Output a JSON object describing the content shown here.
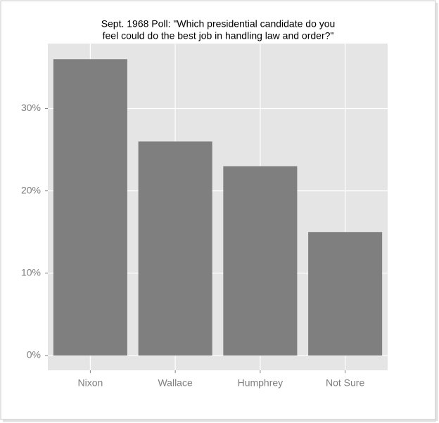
{
  "chart_data": {
    "type": "bar",
    "title": [
      "Sept. 1968 Poll: \"Which presidential candidate do you",
      "feel could do the best job in handling law and order?\""
    ],
    "categories": [
      "Nixon",
      "Wallace",
      "Humphrey",
      "Not Sure"
    ],
    "values": [
      36,
      26,
      23,
      15
    ],
    "color": "#7f7f7f",
    "ylim": [
      -1.8,
      37.9
    ],
    "yticks": [
      {
        "value": 0,
        "label": "0%"
      },
      {
        "value": 10,
        "label": "10%"
      },
      {
        "value": 20,
        "label": "20%"
      },
      {
        "value": 30,
        "label": "30%"
      }
    ],
    "grid": true
  }
}
